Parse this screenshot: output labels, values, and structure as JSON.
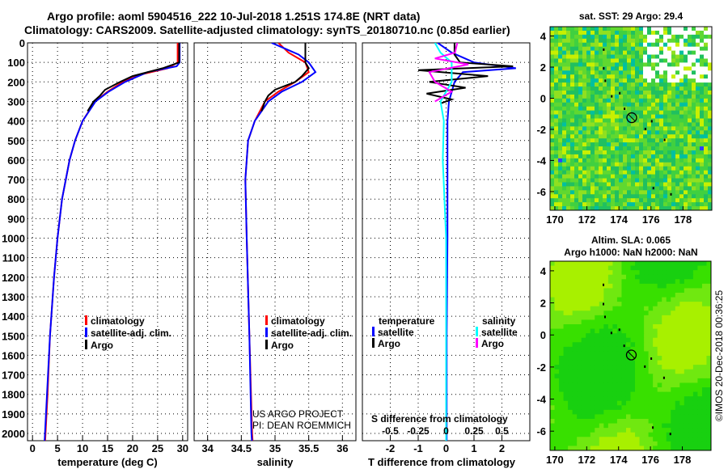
{
  "title": {
    "line1": "Argo profile: aoml 5904516_222 10-Jul-2018 1.251S 174.8E (NRT data)",
    "line2": "Climatology: CARS2009. Satellite-adjusted climatology: synTS_20180710.nc (0.85d earlier)"
  },
  "colors": {
    "climatology": "#ff0000",
    "satellite": "#0000ff",
    "argo": "#000000",
    "sal_satellite": "#00ffff",
    "sal_argo": "#ff00ff"
  },
  "chart_data": [
    {
      "type": "line",
      "name": "temperature-profile",
      "xlabel": "temperature (deg C)",
      "ylabel": "depth",
      "xlim": [
        -1,
        31
      ],
      "ylim": [
        2100,
        0
      ],
      "xticks": [
        0,
        5,
        10,
        15,
        20,
        25,
        30
      ],
      "yticks": [
        0,
        100,
        200,
        300,
        400,
        500,
        600,
        700,
        800,
        900,
        1000,
        1100,
        1200,
        1300,
        1400,
        1500,
        1600,
        1700,
        1800,
        1900,
        2000
      ],
      "legend": [
        "climatology",
        "satellite-adj. clim.",
        "Argo"
      ],
      "legend_position": "bottom-right",
      "series": [
        {
          "name": "climatology",
          "depth": [
            0,
            100,
            130,
            160,
            200,
            250,
            300,
            400,
            500,
            600,
            800,
            1000,
            1200,
            1500,
            1800,
            2050
          ],
          "values": [
            29.0,
            29.0,
            27,
            22,
            18,
            15,
            12.5,
            10,
            8.5,
            7.4,
            5.9,
            5.0,
            4.3,
            3.5,
            3.0,
            2.5
          ]
        },
        {
          "name": "satellite-adj. clim.",
          "depth": [
            0,
            100,
            120,
            150,
            200,
            250,
            300,
            400,
            500,
            600,
            800,
            1000,
            1200,
            1500,
            1800,
            2050
          ],
          "values": [
            29.4,
            29.4,
            28.8,
            23,
            18.5,
            15.2,
            12.6,
            10,
            8.5,
            7.4,
            5.9,
            5.0,
            4.3,
            3.5,
            2.9,
            2.4
          ]
        },
        {
          "name": "Argo",
          "depth": [
            0,
            100,
            130,
            170,
            200,
            240,
            270,
            300,
            350
          ],
          "values": [
            29.3,
            29.3,
            26,
            20,
            17.5,
            14.5,
            13.5,
            12.2,
            11
          ]
        }
      ]
    },
    {
      "type": "line",
      "name": "salinity-profile",
      "xlabel": "salinity",
      "xlim": [
        33.8,
        36.2
      ],
      "xticks": [
        34,
        34.5,
        35,
        35.5,
        36
      ],
      "legend": [
        "climatology",
        "satellite-adj. clim.",
        "Argo"
      ],
      "legend_position": "bottom-right",
      "annotation": [
        "US ARGO PROJECT",
        "PI: DEAN ROEMMICH"
      ],
      "series": [
        {
          "name": "climatology",
          "depth": [
            0,
            50,
            100,
            150,
            200,
            250,
            300,
            400,
            500,
            700,
            1000,
            1500,
            2000,
            2050
          ],
          "values": [
            35.05,
            35.2,
            35.45,
            35.5,
            35.3,
            35.05,
            34.85,
            34.7,
            34.6,
            34.56,
            34.58,
            34.62,
            34.66,
            34.67
          ]
        },
        {
          "name": "satellite-adj. clim.",
          "depth": [
            0,
            30,
            60,
            100,
            150,
            200,
            250,
            300,
            400,
            500,
            700,
            1000,
            1500,
            2000,
            2050
          ],
          "values": [
            34.95,
            35.15,
            35.35,
            35.5,
            35.6,
            35.4,
            35.1,
            34.9,
            34.7,
            34.6,
            34.56,
            34.58,
            34.62,
            34.65,
            34.66
          ]
        },
        {
          "name": "Argo",
          "depth": [
            0,
            100,
            130,
            170,
            200,
            240,
            270,
            300,
            350
          ],
          "values": [
            35.45,
            35.45,
            35.5,
            35.4,
            35.3,
            35.0,
            34.9,
            34.85,
            34.8
          ]
        }
      ]
    },
    {
      "type": "line",
      "name": "difference-profile",
      "xlabel": "T difference from climatology",
      "x2label": "S difference from climatology",
      "xlim": [
        -3,
        3
      ],
      "x2lim": [
        -0.75,
        0.75
      ],
      "xticks": [
        -2,
        -1,
        0,
        1,
        2
      ],
      "x2ticks": [
        "-0.5",
        "-0.25",
        "0",
        "0.25",
        "0.5"
      ],
      "legend_titles": [
        "temperature",
        "salinity"
      ],
      "legend": [
        "satellite",
        "Argo",
        "satellite",
        "Argo"
      ],
      "series": [
        {
          "name": "T satellite",
          "depth": [
            0,
            50,
            100,
            130,
            150,
            200,
            300,
            400,
            600,
            1000,
            1500,
            2050
          ],
          "values": [
            -0.3,
            0.2,
            1.0,
            2.5,
            0.6,
            0.3,
            0.1,
            0.05,
            0.05,
            0.05,
            0.02,
            0.02
          ]
        },
        {
          "name": "T Argo",
          "depth": [
            0,
            60,
            100,
            120,
            140,
            170,
            200,
            230,
            260,
            290,
            310
          ],
          "values": [
            0.3,
            0.3,
            0.5,
            2.4,
            -1.0,
            1.5,
            -0.6,
            0.7,
            -0.7,
            0.2,
            -0.2
          ]
        },
        {
          "name": "S satellite",
          "depth": [
            0,
            50,
            100,
            200,
            300,
            400,
            600,
            1000,
            1500,
            2050
          ],
          "values": [
            -0.1,
            -0.05,
            0.05,
            0.05,
            -0.05,
            -0.02,
            -0.03,
            0.0,
            0.0,
            0.0
          ]
        },
        {
          "name": "S Argo",
          "depth": [
            0,
            50,
            80,
            110,
            150,
            200,
            250,
            300
          ],
          "values": [
            0.1,
            0.08,
            -0.1,
            0.2,
            -0.15,
            -0.1,
            0.05,
            -0.1
          ]
        }
      ]
    },
    {
      "type": "heatmap",
      "name": "sst-map",
      "title": "sat. SST: 29 Argo: 29.4",
      "xlim": [
        169.7,
        179.8
      ],
      "ylim": [
        -7.2,
        4.6
      ],
      "xticks": [
        170,
        172,
        174,
        176,
        178
      ],
      "yticks": [
        4,
        2,
        0,
        -2,
        -4,
        -6
      ],
      "argo_position": [
        174.8,
        -1.251
      ]
    },
    {
      "type": "heatmap",
      "name": "sla-map",
      "title": "Altim. SLA: 0.065",
      "subtitle": "Argo h1000: NaN h2000: NaN",
      "xlim": [
        169.7,
        179.8
      ],
      "ylim": [
        -7.2,
        4.6
      ],
      "xticks": [
        170,
        172,
        174,
        176,
        178
      ],
      "yticks": [
        4,
        2,
        0,
        -2,
        -4,
        -6
      ],
      "argo_position": [
        174.8,
        -1.251
      ]
    }
  ],
  "credit": "©IMOS 20-Dec-2018 00:36:25"
}
